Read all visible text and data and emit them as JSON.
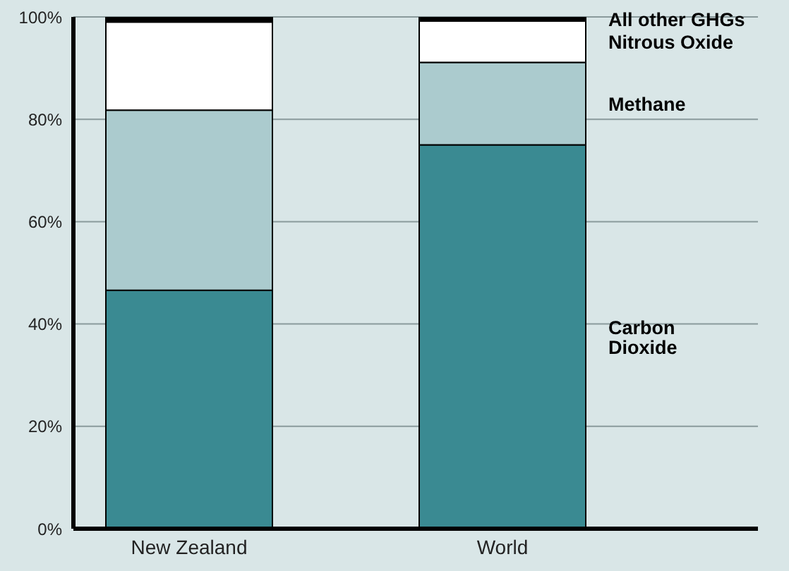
{
  "chart_data": {
    "type": "bar",
    "stacked": true,
    "categories": [
      "New Zealand",
      "World"
    ],
    "series": [
      {
        "name": "Carbon Dioxide",
        "color": "#3a8a92",
        "values": [
          46.6,
          75.0
        ]
      },
      {
        "name": "Methane",
        "color": "#abcbce",
        "values": [
          35.2,
          16.1
        ]
      },
      {
        "name": "Nitrous Oxide",
        "color": "#ffffff",
        "values": [
          17.2,
          8.1
        ]
      },
      {
        "name": "All other GHGs",
        "color": "#000000",
        "values": [
          1.0,
          0.8
        ]
      }
    ],
    "ylim": [
      0,
      100
    ],
    "yticks": [
      {
        "value": 0,
        "label": "0%"
      },
      {
        "value": 20,
        "label": "20%"
      },
      {
        "value": 40,
        "label": "40%"
      },
      {
        "value": 60,
        "label": "60%"
      },
      {
        "value": 80,
        "label": "80%"
      },
      {
        "value": 100,
        "label": "100%"
      }
    ],
    "grid": "y",
    "legend": false
  }
}
